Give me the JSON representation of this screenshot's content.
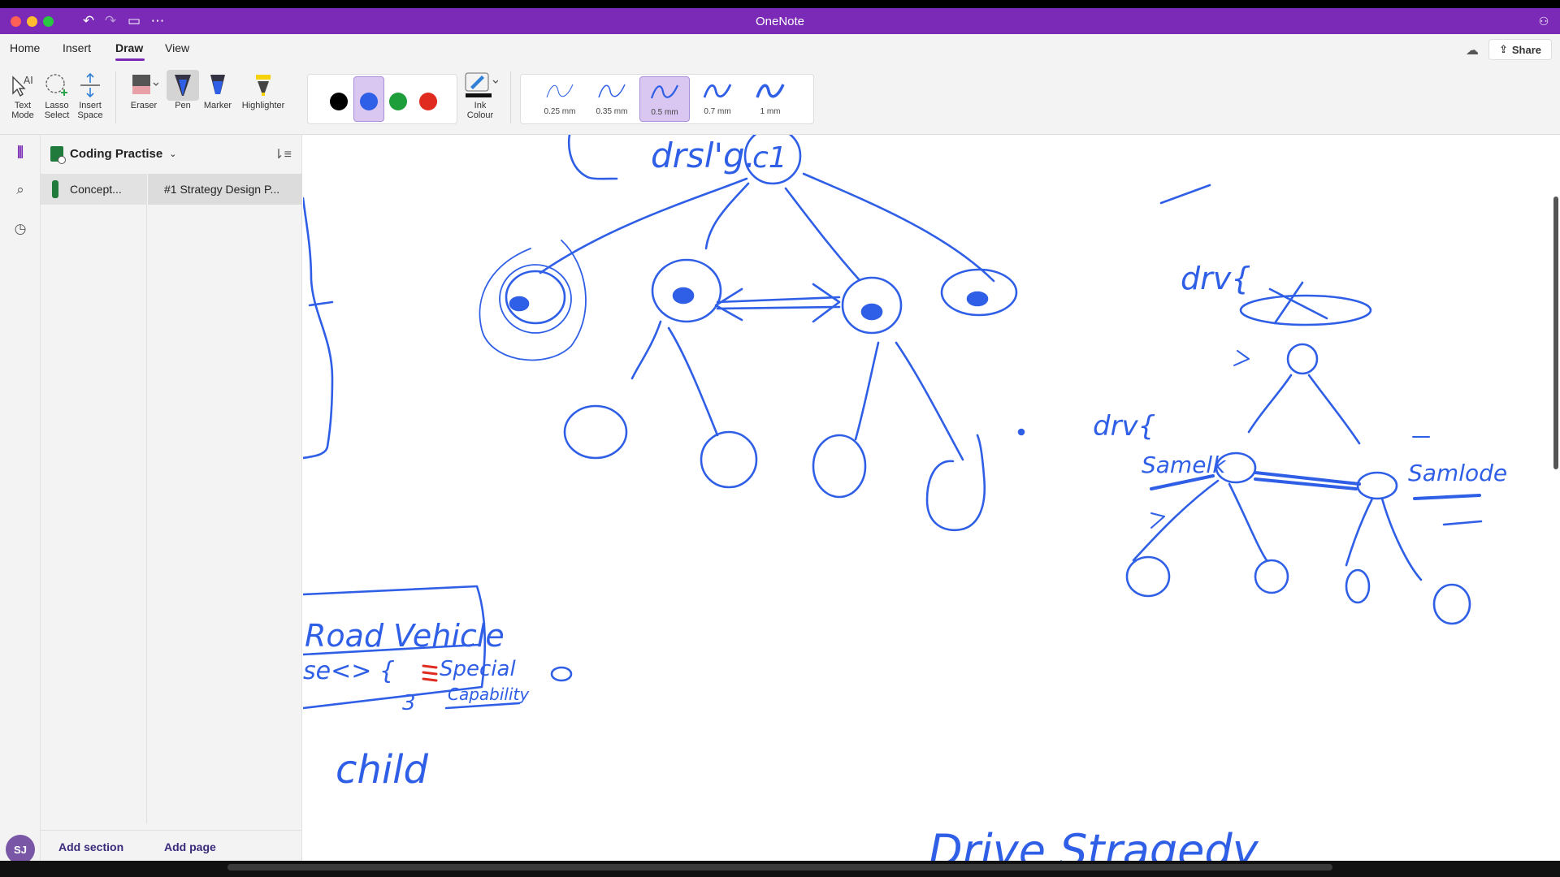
{
  "window": {
    "title": "OneNote"
  },
  "ribbon_tabs": [
    {
      "label": "Home"
    },
    {
      "label": "Insert"
    },
    {
      "label": "Draw"
    },
    {
      "label": "View"
    }
  ],
  "share_label": "Share",
  "tools": {
    "text_mode": "Text\nMode",
    "lasso_select": "Lasso\nSelect",
    "insert_space": "Insert\nSpace",
    "eraser": "Eraser",
    "pen": "Pen",
    "marker": "Marker",
    "highlighter": "Highlighter",
    "ink_colour": "Ink\nColour"
  },
  "pen_colors": [
    "#000000",
    "#2f5fe6",
    "#1e9e3a",
    "#e02b20"
  ],
  "selected_pen_color": "#2f5fe6",
  "thickness": [
    {
      "label": "0.25 mm"
    },
    {
      "label": "0.35 mm"
    },
    {
      "label": "0.5 mm"
    },
    {
      "label": "0.7 mm"
    },
    {
      "label": "1 mm"
    }
  ],
  "selected_thickness": "0.5 mm",
  "notebook": {
    "name": "Coding Practise"
  },
  "section": {
    "name": "Concept..."
  },
  "page": {
    "title": "#1 Strategy Design P..."
  },
  "footer": {
    "add_section": "Add section",
    "add_page": "Add page"
  },
  "user": {
    "initials": "SJ"
  },
  "ink_text": {
    "top_label": "drsl'g.",
    "c1": "c1",
    "drv_right": "drv{",
    "drv_mid": "drv{",
    "same_left": "Samelk",
    "same_right": "Samlode",
    "road_vehicle": "Road Vehicle",
    "method": "se<> {",
    "special": "Special",
    "capability": "Capability",
    "brace_close": "3",
    "child": "child",
    "strategy": "Drive Stragedy"
  },
  "accent_color": "#7a2ab6",
  "ink_color": "#2f5fe6"
}
